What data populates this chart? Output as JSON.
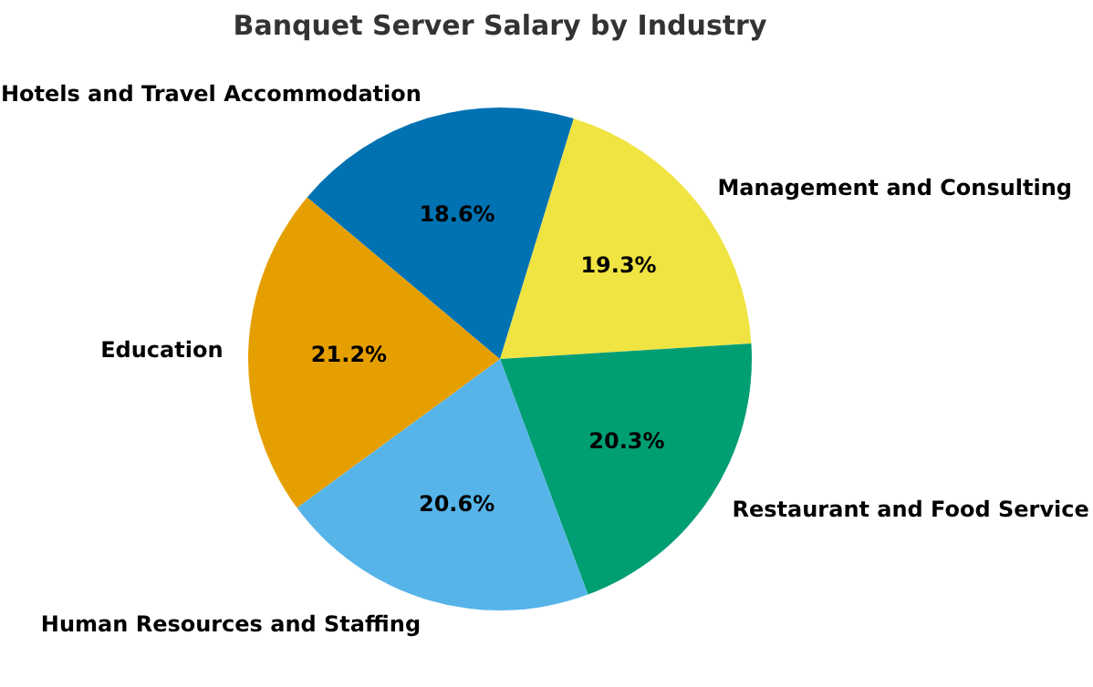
{
  "chart_data": {
    "type": "pie",
    "title": "Banquet Server Salary by Industry",
    "categories": [
      "Management and Consulting",
      "Restaurant and Food Service",
      "Human Resources and Staffing",
      "Education",
      "Hotels and Travel Accommodation"
    ],
    "values": [
      19.3,
      20.3,
      20.6,
      21.2,
      18.6
    ],
    "colors": [
      "#f0e442",
      "#009e73",
      "#56b4e9",
      "#e69f00",
      "#0072b2"
    ],
    "value_labels": [
      "19.3%",
      "20.3%",
      "20.6%",
      "21.2%",
      "18.6%"
    ]
  }
}
